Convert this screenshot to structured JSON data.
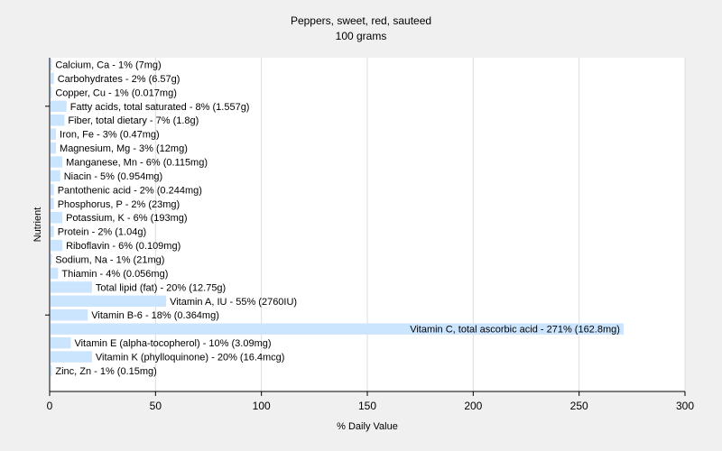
{
  "chart_data": {
    "type": "bar",
    "orientation": "horizontal",
    "title": "Peppers, sweet, red, sauteed",
    "subtitle": "100 grams",
    "xlabel": "% Daily Value",
    "ylabel": "Nutrient",
    "xlim": [
      0,
      300
    ],
    "xticks": [
      0,
      50,
      100,
      150,
      200,
      250,
      300
    ],
    "grid": true,
    "bar_color": "#cce5ff",
    "categories": [
      "Calcium, Ca",
      "Carbohydrates",
      "Copper, Cu",
      "Fatty acids, total saturated",
      "Fiber, total dietary",
      "Iron, Fe",
      "Magnesium, Mg",
      "Manganese, Mn",
      "Niacin",
      "Pantothenic acid",
      "Phosphorus, P",
      "Potassium, K",
      "Protein",
      "Riboflavin",
      "Sodium, Na",
      "Thiamin",
      "Total lipid (fat)",
      "Vitamin A, IU",
      "Vitamin B-6",
      "Vitamin C, total ascorbic acid",
      "Vitamin E (alpha-tocopherol)",
      "Vitamin K (phylloquinone)",
      "Zinc, Zn"
    ],
    "values": [
      1,
      2,
      1,
      8,
      7,
      3,
      3,
      6,
      5,
      2,
      2,
      6,
      2,
      6,
      1,
      4,
      20,
      55,
      18,
      271,
      10,
      20,
      1
    ],
    "labels": [
      "Calcium, Ca - 1% (7mg)",
      "Carbohydrates - 2% (6.57g)",
      "Copper, Cu - 1% (0.017mg)",
      "Fatty acids, total saturated - 8% (1.557g)",
      "Fiber, total dietary - 7% (1.8g)",
      "Iron, Fe - 3% (0.47mg)",
      "Magnesium, Mg - 3% (12mg)",
      "Manganese, Mn - 6% (0.115mg)",
      "Niacin - 5% (0.954mg)",
      "Pantothenic acid - 2% (0.244mg)",
      "Phosphorus, P - 2% (23mg)",
      "Potassium, K - 6% (193mg)",
      "Protein - 2% (1.04g)",
      "Riboflavin - 6% (0.109mg)",
      "Sodium, Na - 1% (21mg)",
      "Thiamin - 4% (0.056mg)",
      "Total lipid (fat) - 20% (12.75g)",
      "Vitamin A, IU - 55% (2760IU)",
      "Vitamin B-6 - 18% (0.364mg)",
      "Vitamin C, total ascorbic acid - 271% (162.8mg)",
      "Vitamin E (alpha-tocopherol) - 10% (3.09mg)",
      "Vitamin K (phylloquinone) - 20% (16.4mcg)",
      "Zinc, Zn - 1% (0.15mg)"
    ]
  }
}
